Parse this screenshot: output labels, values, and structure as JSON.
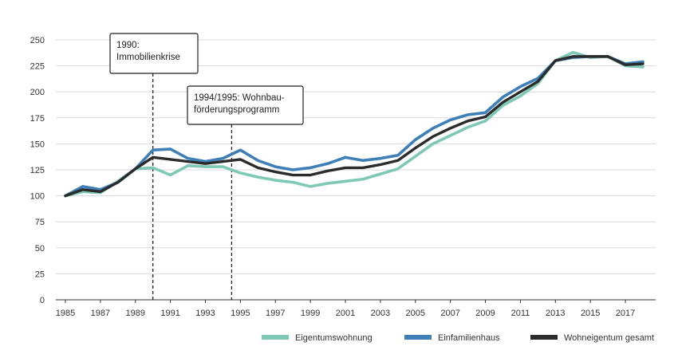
{
  "chart_data": {
    "type": "line",
    "title": "",
    "xlabel": "",
    "ylabel": "",
    "ylim": [
      0,
      250
    ],
    "yticks": [
      0,
      25,
      50,
      75,
      100,
      125,
      150,
      175,
      200,
      225,
      250
    ],
    "xlim": [
      1985,
      2018
    ],
    "xticks": [
      1985,
      1987,
      1989,
      1991,
      1993,
      1995,
      1997,
      1999,
      2001,
      2003,
      2005,
      2007,
      2009,
      2011,
      2013,
      2015,
      2017
    ],
    "grid": "horizontal",
    "legend_position": "bottom-right",
    "x": [
      1985,
      1986,
      1987,
      1988,
      1989,
      1990,
      1991,
      1992,
      1993,
      1994,
      1995,
      1996,
      1997,
      1998,
      1999,
      2000,
      2001,
      2002,
      2003,
      2004,
      2005,
      2006,
      2007,
      2008,
      2009,
      2010,
      2011,
      2012,
      2013,
      2014,
      2015,
      2016,
      2017,
      2018
    ],
    "series": [
      {
        "name": "Eigentumswohnung",
        "color": "#7fc8b5",
        "values": [
          100,
          104,
          103,
          114,
          126,
          127,
          120,
          129,
          128,
          128,
          122,
          118,
          115,
          113,
          109,
          112,
          114,
          116,
          121,
          126,
          138,
          150,
          158,
          166,
          172,
          187,
          196,
          208,
          230,
          238,
          233,
          234,
          225,
          224
        ]
      },
      {
        "name": "Einfamilienhaus",
        "color": "#3e7fb8",
        "values": [
          100,
          109,
          106,
          113,
          126,
          144,
          145,
          136,
          133,
          136,
          144,
          134,
          128,
          125,
          127,
          131,
          137,
          134,
          136,
          139,
          154,
          165,
          173,
          178,
          180,
          195,
          205,
          213,
          230,
          233,
          234,
          234,
          227,
          229
        ]
      },
      {
        "name": "Wohneigentum gesamt",
        "color": "#2b2b2b",
        "values": [
          100,
          106,
          104,
          113,
          126,
          137,
          135,
          133,
          131,
          133,
          135,
          127,
          123,
          120,
          120,
          124,
          127,
          127,
          130,
          134,
          146,
          157,
          165,
          172,
          176,
          190,
          200,
          210,
          230,
          234,
          234,
          234,
          226,
          227
        ]
      }
    ],
    "annotations": [
      {
        "x": 1990,
        "lines": [
          "1990:",
          "Immobilienkrise"
        ]
      },
      {
        "x": 1994.5,
        "lines": [
          "1994/1995: Wohnbau-",
          "förderungsprogramm"
        ]
      }
    ]
  }
}
